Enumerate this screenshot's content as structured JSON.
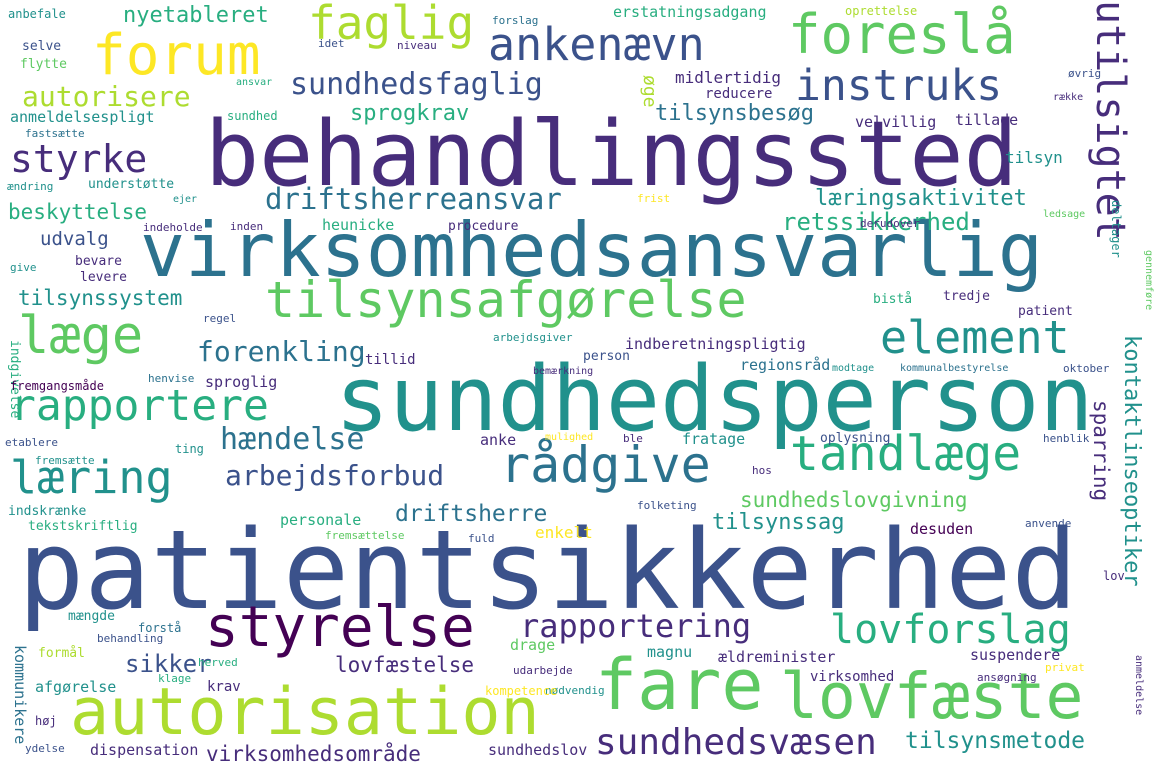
{
  "palette": {
    "p1": "#440154",
    "p2": "#472d7b",
    "p3": "#3b528b",
    "p4": "#2c728e",
    "p5": "#21918c",
    "p6": "#28ae80",
    "p7": "#5ec962",
    "p8": "#addc30",
    "p9": "#fde725"
  },
  "words": [
    {
      "text": "patientsikkerhed",
      "color": "#3b528b"
    },
    {
      "text": "sundhedsperson",
      "color": "#21918c"
    },
    {
      "text": "behandlingssted",
      "color": "#472d7b"
    },
    {
      "text": "virksomhedsansvarlig",
      "color": "#2c728e"
    },
    {
      "text": "autorisation",
      "color": "#addc30"
    },
    {
      "text": "fare",
      "color": "#5ec962"
    },
    {
      "text": "lovfæste",
      "color": "#5ec962"
    },
    {
      "text": "styrelse",
      "color": "#440154"
    },
    {
      "text": "forum",
      "color": "#fde725"
    },
    {
      "text": "foreslå",
      "color": "#5ec962"
    },
    {
      "text": "ankenævn",
      "color": "#3b528b"
    },
    {
      "text": "faglig",
      "color": "#addc30"
    },
    {
      "text": "tilsynsafgørelse",
      "color": "#5ec962"
    },
    {
      "text": "tandlæge",
      "color": "#28ae80"
    },
    {
      "text": "rådgive",
      "color": "#2c728e"
    },
    {
      "text": "rapportere",
      "color": "#28ae80"
    },
    {
      "text": "læge",
      "color": "#5ec962"
    },
    {
      "text": "læring",
      "color": "#21918c"
    },
    {
      "text": "element",
      "color": "#21918c"
    },
    {
      "text": "utilsigtet",
      "color": "#472d7b"
    },
    {
      "text": "instruks",
      "color": "#3b528b"
    },
    {
      "text": "sundhedsfaglig",
      "color": "#3b528b"
    },
    {
      "text": "styrke",
      "color": "#472d7b"
    },
    {
      "text": "lovforslag",
      "color": "#28ae80"
    },
    {
      "text": "sundhedsvæsen",
      "color": "#472d7b"
    },
    {
      "text": "rapportering",
      "color": "#472d7b"
    },
    {
      "text": "arbejdsforbud",
      "color": "#3b528b"
    },
    {
      "text": "hændelse",
      "color": "#2c728e"
    },
    {
      "text": "forenkling",
      "color": "#2c728e"
    },
    {
      "text": "driftsherreansvar",
      "color": "#2c728e"
    },
    {
      "text": "autorisere",
      "color": "#addc30"
    },
    {
      "text": "kontaktlinseoptiker",
      "color": "#21918c"
    },
    {
      "text": "sundhedslovgivning",
      "color": "#5ec962"
    },
    {
      "text": "retssikkerhed",
      "color": "#28ae80"
    },
    {
      "text": "læringsaktivitet",
      "color": "#21918c"
    },
    {
      "text": "tilsynsbesøg",
      "color": "#2c728e"
    },
    {
      "text": "sprogkrav",
      "color": "#28ae80"
    },
    {
      "text": "nyetableret",
      "color": "#28ae80"
    },
    {
      "text": "driftsherre",
      "color": "#2c728e"
    },
    {
      "text": "tilsynssag",
      "color": "#21918c"
    },
    {
      "text": "lovfæstelse",
      "color": "#472d7b"
    },
    {
      "text": "sikker",
      "color": "#3b528b"
    },
    {
      "text": "tilsynsmetode",
      "color": "#21918c"
    },
    {
      "text": "virksomhedsområde",
      "color": "#472d7b"
    },
    {
      "text": "tilsynssystem",
      "color": "#21918c"
    },
    {
      "text": "beskyttelse",
      "color": "#28ae80"
    },
    {
      "text": "udvalg",
      "color": "#3b528b"
    },
    {
      "text": "sparring",
      "color": "#472d7b"
    },
    {
      "text": "øge",
      "color": "#addc30"
    },
    {
      "text": "midlertidig",
      "color": "#472d7b"
    },
    {
      "text": "erstatningsadgang",
      "color": "#28ae80"
    },
    {
      "text": "reducere",
      "color": "#472d7b"
    },
    {
      "text": "velvillig",
      "color": "#472d7b"
    },
    {
      "text": "tillade",
      "color": "#472d7b"
    },
    {
      "text": "tilsyn",
      "color": "#21918c"
    },
    {
      "text": "anmeldelsespligt",
      "color": "#21918c"
    },
    {
      "text": "heunicke",
      "color": "#28ae80"
    },
    {
      "text": "procedure",
      "color": "#472d7b"
    },
    {
      "text": "indberetningspligtig",
      "color": "#472d7b"
    },
    {
      "text": "regionsråd",
      "color": "#2c728e"
    },
    {
      "text": "sproglig",
      "color": "#472d7b"
    },
    {
      "text": "tillid",
      "color": "#472d7b"
    },
    {
      "text": "person",
      "color": "#3b528b"
    },
    {
      "text": "anke",
      "color": "#472d7b"
    },
    {
      "text": "fratage",
      "color": "#21918c"
    },
    {
      "text": "oplysning",
      "color": "#3b528b"
    },
    {
      "text": "personale",
      "color": "#28ae80"
    },
    {
      "text": "enkelt",
      "color": "#fde725"
    },
    {
      "text": "desuden",
      "color": "#440154"
    },
    {
      "text": "kommunikere",
      "color": "#2c728e"
    },
    {
      "text": "drage",
      "color": "#5ec962"
    },
    {
      "text": "magnu",
      "color": "#21918c"
    },
    {
      "text": "ældreminister",
      "color": "#472d7b"
    },
    {
      "text": "suspendere",
      "color": "#472d7b"
    },
    {
      "text": "afgørelse",
      "color": "#21918c"
    },
    {
      "text": "krav",
      "color": "#472d7b"
    },
    {
      "text": "virksomhed",
      "color": "#472d7b"
    },
    {
      "text": "dispensation",
      "color": "#472d7b"
    },
    {
      "text": "sundhedslov",
      "color": "#472d7b"
    },
    {
      "text": "selve",
      "color": "#3b528b"
    },
    {
      "text": "flytte",
      "color": "#5ec962"
    },
    {
      "text": "fastsætte",
      "color": "#2c728e"
    },
    {
      "text": "ændring",
      "color": "#21918c"
    },
    {
      "text": "understøtte",
      "color": "#21918c"
    },
    {
      "text": "bevare",
      "color": "#472d7b"
    },
    {
      "text": "levere",
      "color": "#472d7b"
    },
    {
      "text": "indgivelse",
      "color": "#28ae80"
    },
    {
      "text": "give",
      "color": "#21918c"
    },
    {
      "text": "anbefale",
      "color": "#21918c"
    },
    {
      "text": "forslag",
      "color": "#2c728e"
    },
    {
      "text": "idet",
      "color": "#3b528b"
    },
    {
      "text": "niveau",
      "color": "#472d7b"
    },
    {
      "text": "ansvar",
      "color": "#28ae80"
    },
    {
      "text": "sundhed",
      "color": "#28ae80"
    },
    {
      "text": "oprettelse",
      "color": "#addc30"
    },
    {
      "text": "øvrig",
      "color": "#3b528b"
    },
    {
      "text": "række",
      "color": "#472d7b"
    },
    {
      "text": "ejer",
      "color": "#21918c"
    },
    {
      "text": "frist",
      "color": "#fde725"
    },
    {
      "text": "indeholde",
      "color": "#472d7b"
    },
    {
      "text": "inden",
      "color": "#472d7b"
    },
    {
      "text": "derudover",
      "color": "#472d7b"
    },
    {
      "text": "ledsage",
      "color": "#5ec962"
    },
    {
      "text": "deltager",
      "color": "#21918c"
    },
    {
      "text": "gennemføre",
      "color": "#5ec962"
    },
    {
      "text": "bistå",
      "color": "#28ae80"
    },
    {
      "text": "tredje",
      "color": "#472d7b"
    },
    {
      "text": "patient",
      "color": "#472d7b"
    },
    {
      "text": "regel",
      "color": "#3b528b"
    },
    {
      "text": "arbejdsgiver",
      "color": "#21918c"
    },
    {
      "text": "fremgangsmåde",
      "color": "#440154"
    },
    {
      "text": "henvise",
      "color": "#2c728e"
    },
    {
      "text": "bemærkning",
      "color": "#472d7b"
    },
    {
      "text": "modtage",
      "color": "#21918c"
    },
    {
      "text": "kommunalbestyrelse",
      "color": "#2c728e"
    },
    {
      "text": "oktober",
      "color": "#3b528b"
    },
    {
      "text": "etablere",
      "color": "#3b528b"
    },
    {
      "text": "fremsætte",
      "color": "#21918c"
    },
    {
      "text": "ting",
      "color": "#21918c"
    },
    {
      "text": "mulighed",
      "color": "#fde725"
    },
    {
      "text": "ble",
      "color": "#472d7b"
    },
    {
      "text": "henblik",
      "color": "#3b528b"
    },
    {
      "text": "indskrænke",
      "color": "#21918c"
    },
    {
      "text": "tekstskriftlig",
      "color": "#28ae80"
    },
    {
      "text": "fremsættelse",
      "color": "#5ec962"
    },
    {
      "text": "fuld",
      "color": "#3b528b"
    },
    {
      "text": "folketing",
      "color": "#3b528b"
    },
    {
      "text": "hos",
      "color": "#472d7b"
    },
    {
      "text": "anvende",
      "color": "#3b528b"
    },
    {
      "text": "lov",
      "color": "#472d7b"
    },
    {
      "text": "mængde",
      "color": "#21918c"
    },
    {
      "text": "forstå",
      "color": "#2c728e"
    },
    {
      "text": "behandling",
      "color": "#3b528b"
    },
    {
      "text": "formål",
      "color": "#addc30"
    },
    {
      "text": "herved",
      "color": "#28ae80"
    },
    {
      "text": "udarbejde",
      "color": "#472d7b"
    },
    {
      "text": "klage",
      "color": "#28ae80"
    },
    {
      "text": "nødvendig",
      "color": "#21918c"
    },
    {
      "text": "ansøgning",
      "color": "#472d7b"
    },
    {
      "text": "privat",
      "color": "#fde725"
    },
    {
      "text": "kompetence",
      "color": "#fde725"
    },
    {
      "text": "høj",
      "color": "#472d7b"
    },
    {
      "text": "ydelse",
      "color": "#3b528b"
    },
    {
      "text": "anmeldelse",
      "color": "#472d7b"
    }
  ]
}
